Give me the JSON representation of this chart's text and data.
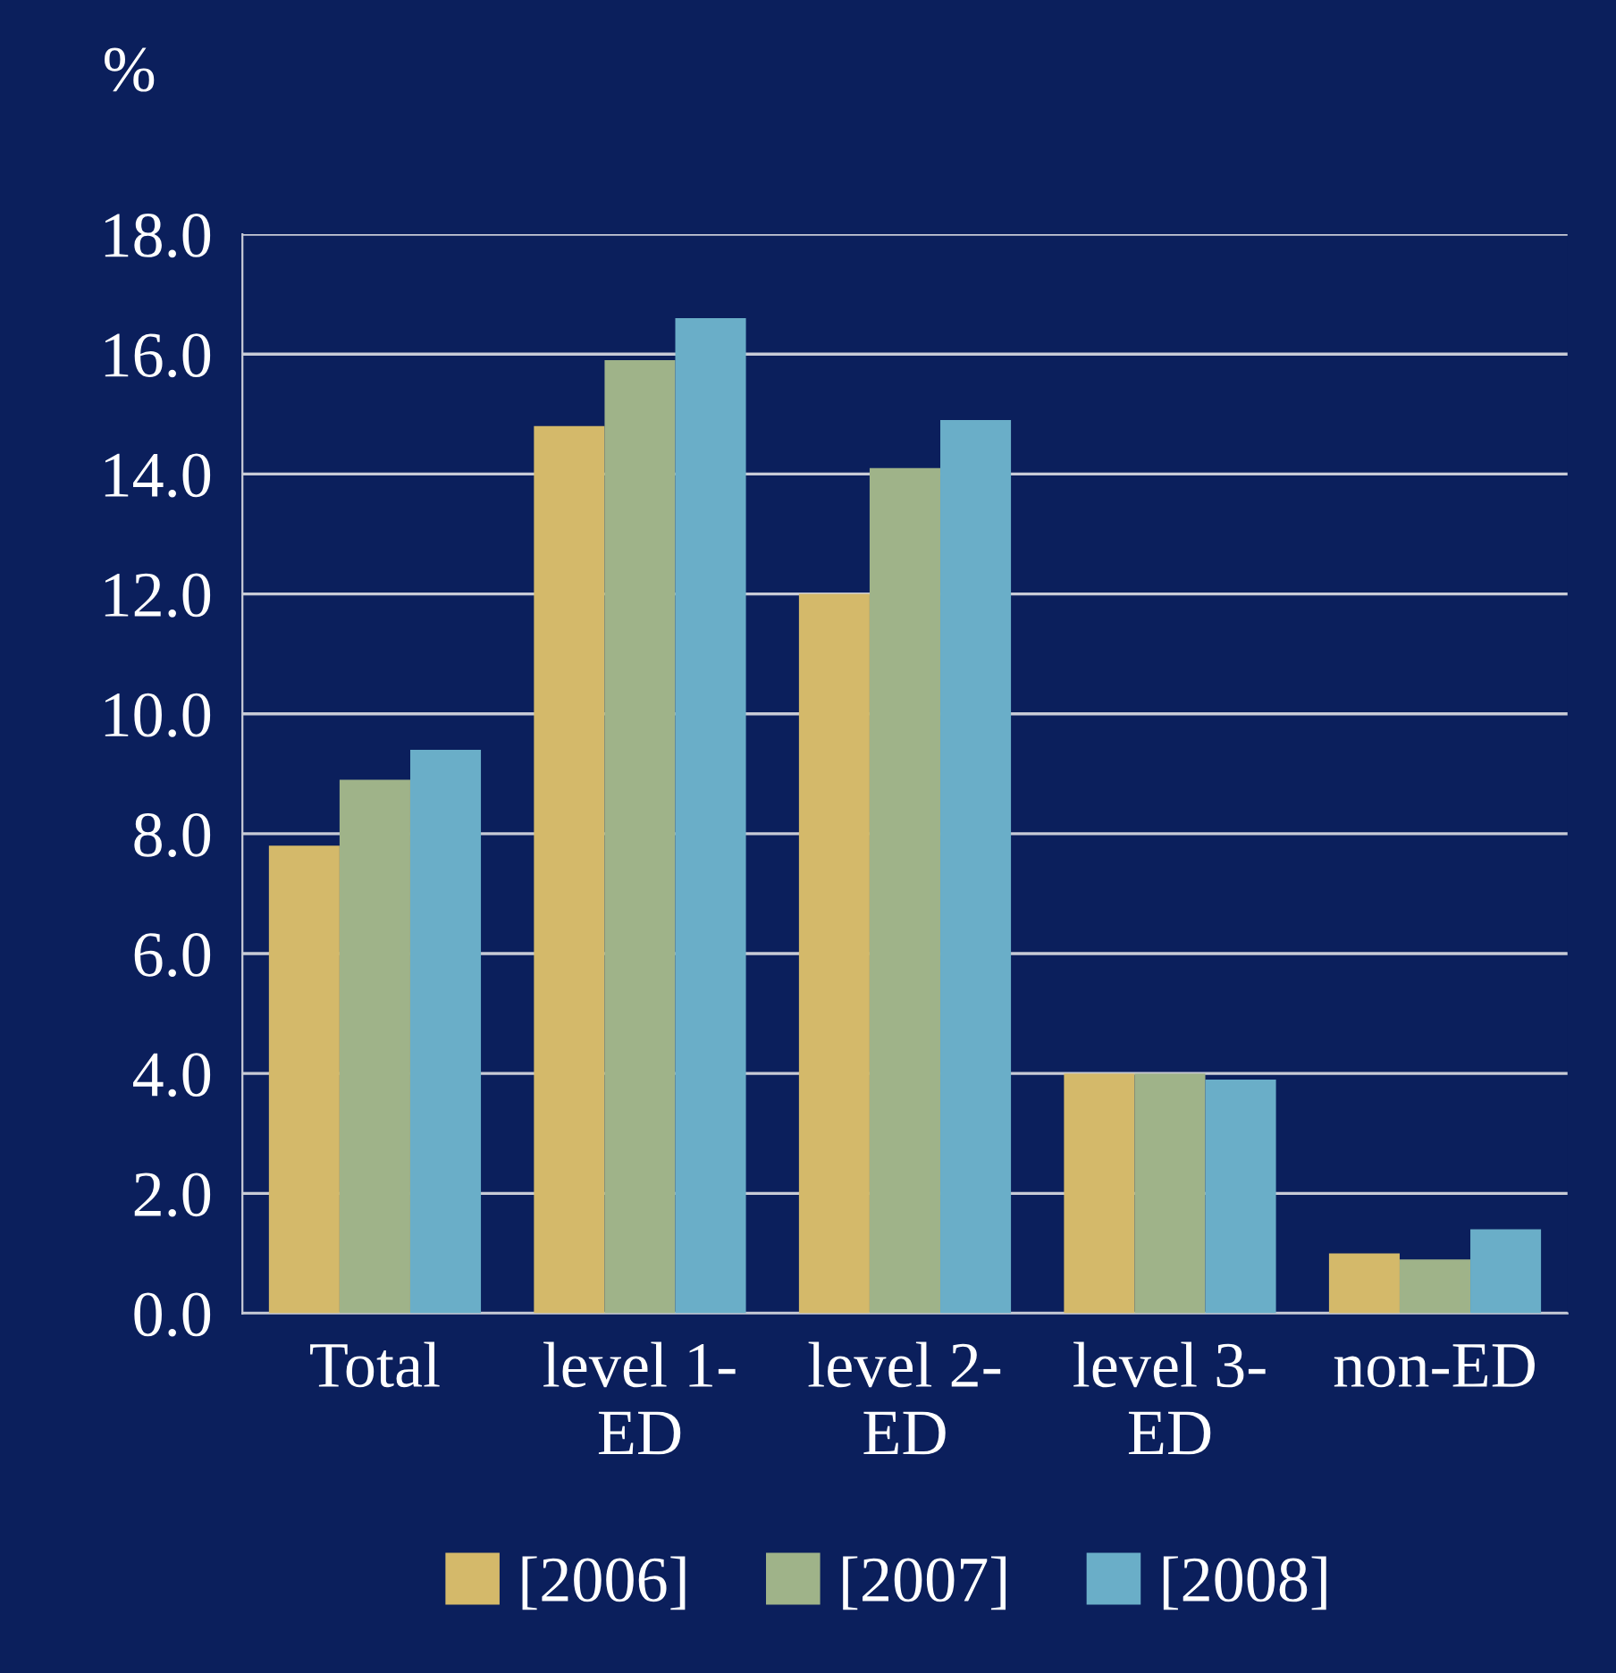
{
  "chart_data": {
    "type": "bar",
    "ylabel": "%",
    "categories": [
      "Total",
      "level 1-\nED",
      "level 2-\nED",
      "level 3-\nED",
      "non-ED"
    ],
    "series": [
      {
        "name": "[2006]",
        "color": "#d4b96a",
        "values": [
          7.8,
          14.8,
          12.0,
          4.0,
          1.0
        ]
      },
      {
        "name": "[2007]",
        "color": "#9fb389",
        "values": [
          8.9,
          15.9,
          14.1,
          4.0,
          0.9
        ]
      },
      {
        "name": "[2008]",
        "color": "#6aaec8",
        "values": [
          9.4,
          16.6,
          14.9,
          3.9,
          1.4
        ]
      }
    ],
    "ylim": [
      0,
      18
    ],
    "yticks": [
      {
        "value": 0,
        "label": "0.0"
      },
      {
        "value": 2,
        "label": "2.0"
      },
      {
        "value": 4,
        "label": "4.0"
      },
      {
        "value": 6,
        "label": "6.0"
      },
      {
        "value": 8,
        "label": "8.0"
      },
      {
        "value": 10,
        "label": "10.0"
      },
      {
        "value": 12,
        "label": "12.0"
      },
      {
        "value": 14,
        "label": "14.0"
      },
      {
        "value": 16,
        "label": "16.0"
      },
      {
        "value": 18,
        "label": "18.0"
      }
    ],
    "grid": "y",
    "legend": "bottom"
  }
}
